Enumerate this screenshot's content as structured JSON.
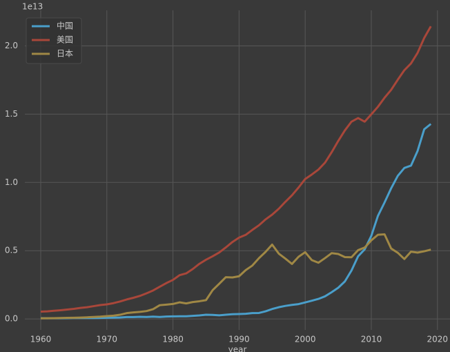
{
  "chart_data": {
    "type": "line",
    "y_offset_label": "1e13",
    "xlabel": "year",
    "x": [
      1960,
      1961,
      1962,
      1963,
      1964,
      1965,
      1966,
      1967,
      1968,
      1969,
      1970,
      1971,
      1972,
      1973,
      1974,
      1975,
      1976,
      1977,
      1978,
      1979,
      1980,
      1981,
      1982,
      1983,
      1984,
      1985,
      1986,
      1987,
      1988,
      1989,
      1990,
      1991,
      1992,
      1993,
      1994,
      1995,
      1996,
      1997,
      1998,
      1999,
      2000,
      2001,
      2002,
      2003,
      2004,
      2005,
      2006,
      2007,
      2008,
      2009,
      2010,
      2011,
      2012,
      2013,
      2014,
      2015,
      2016,
      2017,
      2018,
      2019
    ],
    "series": [
      {
        "name": "中国",
        "color": "#4a9fcb",
        "values": [
          0.006,
          0.005,
          0.005,
          0.005,
          0.006,
          0.007,
          0.008,
          0.007,
          0.007,
          0.008,
          0.009,
          0.01,
          0.011,
          0.014,
          0.014,
          0.016,
          0.015,
          0.017,
          0.015,
          0.018,
          0.019,
          0.02,
          0.02,
          0.023,
          0.026,
          0.031,
          0.03,
          0.027,
          0.031,
          0.035,
          0.036,
          0.038,
          0.043,
          0.044,
          0.056,
          0.073,
          0.086,
          0.096,
          0.103,
          0.109,
          0.121,
          0.134,
          0.147,
          0.166,
          0.196,
          0.229,
          0.275,
          0.355,
          0.459,
          0.51,
          0.609,
          0.755,
          0.853,
          0.957,
          1.048,
          1.106,
          1.123,
          1.231,
          1.389,
          1.428
        ]
      },
      {
        "name": "美国",
        "color": "#a9473a",
        "values": [
          0.054,
          0.056,
          0.06,
          0.064,
          0.069,
          0.074,
          0.081,
          0.086,
          0.094,
          0.102,
          0.107,
          0.116,
          0.128,
          0.143,
          0.155,
          0.169,
          0.188,
          0.209,
          0.236,
          0.263,
          0.286,
          0.321,
          0.334,
          0.366,
          0.404,
          0.434,
          0.459,
          0.487,
          0.524,
          0.564,
          0.596,
          0.616,
          0.652,
          0.686,
          0.729,
          0.764,
          0.807,
          0.858,
          0.906,
          0.963,
          1.025,
          1.058,
          1.094,
          1.145,
          1.221,
          1.304,
          1.381,
          1.445,
          1.471,
          1.445,
          1.499,
          1.554,
          1.62,
          1.678,
          1.752,
          1.822,
          1.871,
          1.949,
          2.058,
          2.143
        ]
      },
      {
        "name": "日本",
        "color": "#a08845",
        "values": [
          0.0044,
          0.0054,
          0.006,
          0.007,
          0.0082,
          0.009,
          0.0106,
          0.0124,
          0.0146,
          0.0172,
          0.0213,
          0.024,
          0.031,
          0.043,
          0.048,
          0.052,
          0.058,
          0.072,
          0.101,
          0.105,
          0.11,
          0.122,
          0.114,
          0.124,
          0.13,
          0.138,
          0.211,
          0.258,
          0.306,
          0.304,
          0.313,
          0.358,
          0.391,
          0.445,
          0.491,
          0.545,
          0.479,
          0.442,
          0.403,
          0.456,
          0.489,
          0.431,
          0.412,
          0.446,
          0.482,
          0.476,
          0.453,
          0.452,
          0.504,
          0.523,
          0.576,
          0.617,
          0.62,
          0.516,
          0.485,
          0.439,
          0.493,
          0.486,
          0.496,
          0.508
        ]
      }
    ],
    "xlim": [
      1957.6,
      2021.9
    ],
    "xticks": [
      1960,
      1970,
      1980,
      1990,
      2000,
      2010,
      2020
    ],
    "ylim": [
      -0.08,
      2.26
    ],
    "yticks": [
      {
        "value": 0,
        "label": "0.0"
      },
      0.5,
      {
        "value": 1,
        "label": "1.0"
      },
      1.5,
      {
        "value": 2,
        "label": "2.0"
      }
    ],
    "grid": true,
    "legend": "upper-left"
  }
}
